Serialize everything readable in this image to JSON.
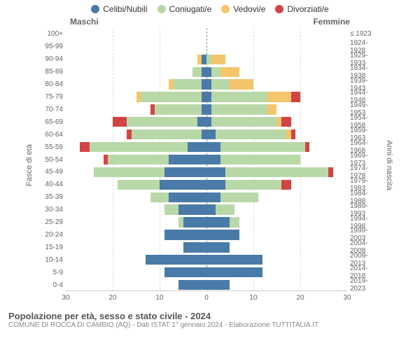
{
  "legend": {
    "items": [
      {
        "label": "Celibi/Nubili",
        "color": "#4a7aa8"
      },
      {
        "label": "Coniugati/e",
        "color": "#b9d8a8"
      },
      {
        "label": "Vedovi/e",
        "color": "#f5c56b"
      },
      {
        "label": "Divorziati/e",
        "color": "#d24444"
      }
    ]
  },
  "gender": {
    "male": "Maschi",
    "female": "Femmine"
  },
  "axis_labels": {
    "left": "Fasce di età",
    "right": "Anni di nascita"
  },
  "pyramid": {
    "xmax": 30,
    "xticks": [
      30,
      20,
      10,
      0,
      10,
      20,
      30
    ],
    "rows": [
      {
        "age": "100+",
        "year": "≤ 1923",
        "m": [
          0,
          0,
          0,
          0
        ],
        "f": [
          0,
          0,
          0,
          0
        ]
      },
      {
        "age": "95-99",
        "year": "1924-1928",
        "m": [
          0,
          0,
          0,
          0
        ],
        "f": [
          0,
          0,
          0,
          0
        ]
      },
      {
        "age": "90-94",
        "year": "1929-1933",
        "m": [
          1,
          0,
          1,
          0
        ],
        "f": [
          0,
          1,
          3,
          0
        ]
      },
      {
        "age": "85-89",
        "year": "1934-1938",
        "m": [
          1,
          2,
          0,
          0
        ],
        "f": [
          1,
          2,
          4,
          0
        ]
      },
      {
        "age": "80-84",
        "year": "1939-1943",
        "m": [
          1,
          6,
          1,
          0
        ],
        "f": [
          1,
          4,
          5,
          0
        ]
      },
      {
        "age": "75-79",
        "year": "1944-1948",
        "m": [
          1,
          13,
          1,
          0
        ],
        "f": [
          1,
          12,
          5,
          2
        ]
      },
      {
        "age": "70-74",
        "year": "1949-1953",
        "m": [
          1,
          10,
          0,
          1
        ],
        "f": [
          1,
          12,
          2,
          0
        ]
      },
      {
        "age": "65-69",
        "year": "1954-1958",
        "m": [
          2,
          15,
          0,
          3
        ],
        "f": [
          1,
          14,
          1,
          2
        ]
      },
      {
        "age": "60-64",
        "year": "1959-1963",
        "m": [
          1,
          15,
          0,
          1
        ],
        "f": [
          2,
          15,
          1,
          1
        ]
      },
      {
        "age": "55-59",
        "year": "1964-1968",
        "m": [
          4,
          21,
          0,
          2
        ],
        "f": [
          3,
          18,
          0,
          1
        ]
      },
      {
        "age": "50-54",
        "year": "1969-1973",
        "m": [
          8,
          13,
          0,
          1
        ],
        "f": [
          3,
          17,
          0,
          0
        ]
      },
      {
        "age": "45-49",
        "year": "1974-1978",
        "m": [
          9,
          15,
          0,
          0
        ],
        "f": [
          4,
          22,
          0,
          1
        ]
      },
      {
        "age": "40-44",
        "year": "1979-1983",
        "m": [
          10,
          9,
          0,
          0
        ],
        "f": [
          4,
          12,
          0,
          2
        ]
      },
      {
        "age": "35-39",
        "year": "1984-1988",
        "m": [
          8,
          4,
          0,
          0
        ],
        "f": [
          3,
          8,
          0,
          0
        ]
      },
      {
        "age": "30-34",
        "year": "1989-1993",
        "m": [
          6,
          3,
          0,
          0
        ],
        "f": [
          2,
          4,
          0,
          0
        ]
      },
      {
        "age": "25-29",
        "year": "1994-1998",
        "m": [
          5,
          1,
          0,
          0
        ],
        "f": [
          5,
          2,
          0,
          0
        ]
      },
      {
        "age": "20-24",
        "year": "1999-2003",
        "m": [
          9,
          0,
          0,
          0
        ],
        "f": [
          7,
          0,
          0,
          0
        ]
      },
      {
        "age": "15-19",
        "year": "2004-2008",
        "m": [
          5,
          0,
          0,
          0
        ],
        "f": [
          5,
          0,
          0,
          0
        ]
      },
      {
        "age": "10-14",
        "year": "2009-2013",
        "m": [
          13,
          0,
          0,
          0
        ],
        "f": [
          12,
          0,
          0,
          0
        ]
      },
      {
        "age": "5-9",
        "year": "2014-2018",
        "m": [
          9,
          0,
          0,
          0
        ],
        "f": [
          12,
          0,
          0,
          0
        ]
      },
      {
        "age": "0-4",
        "year": "2019-2023",
        "m": [
          6,
          0,
          0,
          0
        ],
        "f": [
          5,
          0,
          0,
          0
        ]
      }
    ]
  },
  "footer": {
    "title": "Popolazione per età, sesso e stato civile - 2024",
    "sub": "COMUNE DI ROCCA DI CAMBIO (AQ) - Dati ISTAT 1° gennaio 2024 - Elaborazione TUTTITALIA.IT"
  }
}
